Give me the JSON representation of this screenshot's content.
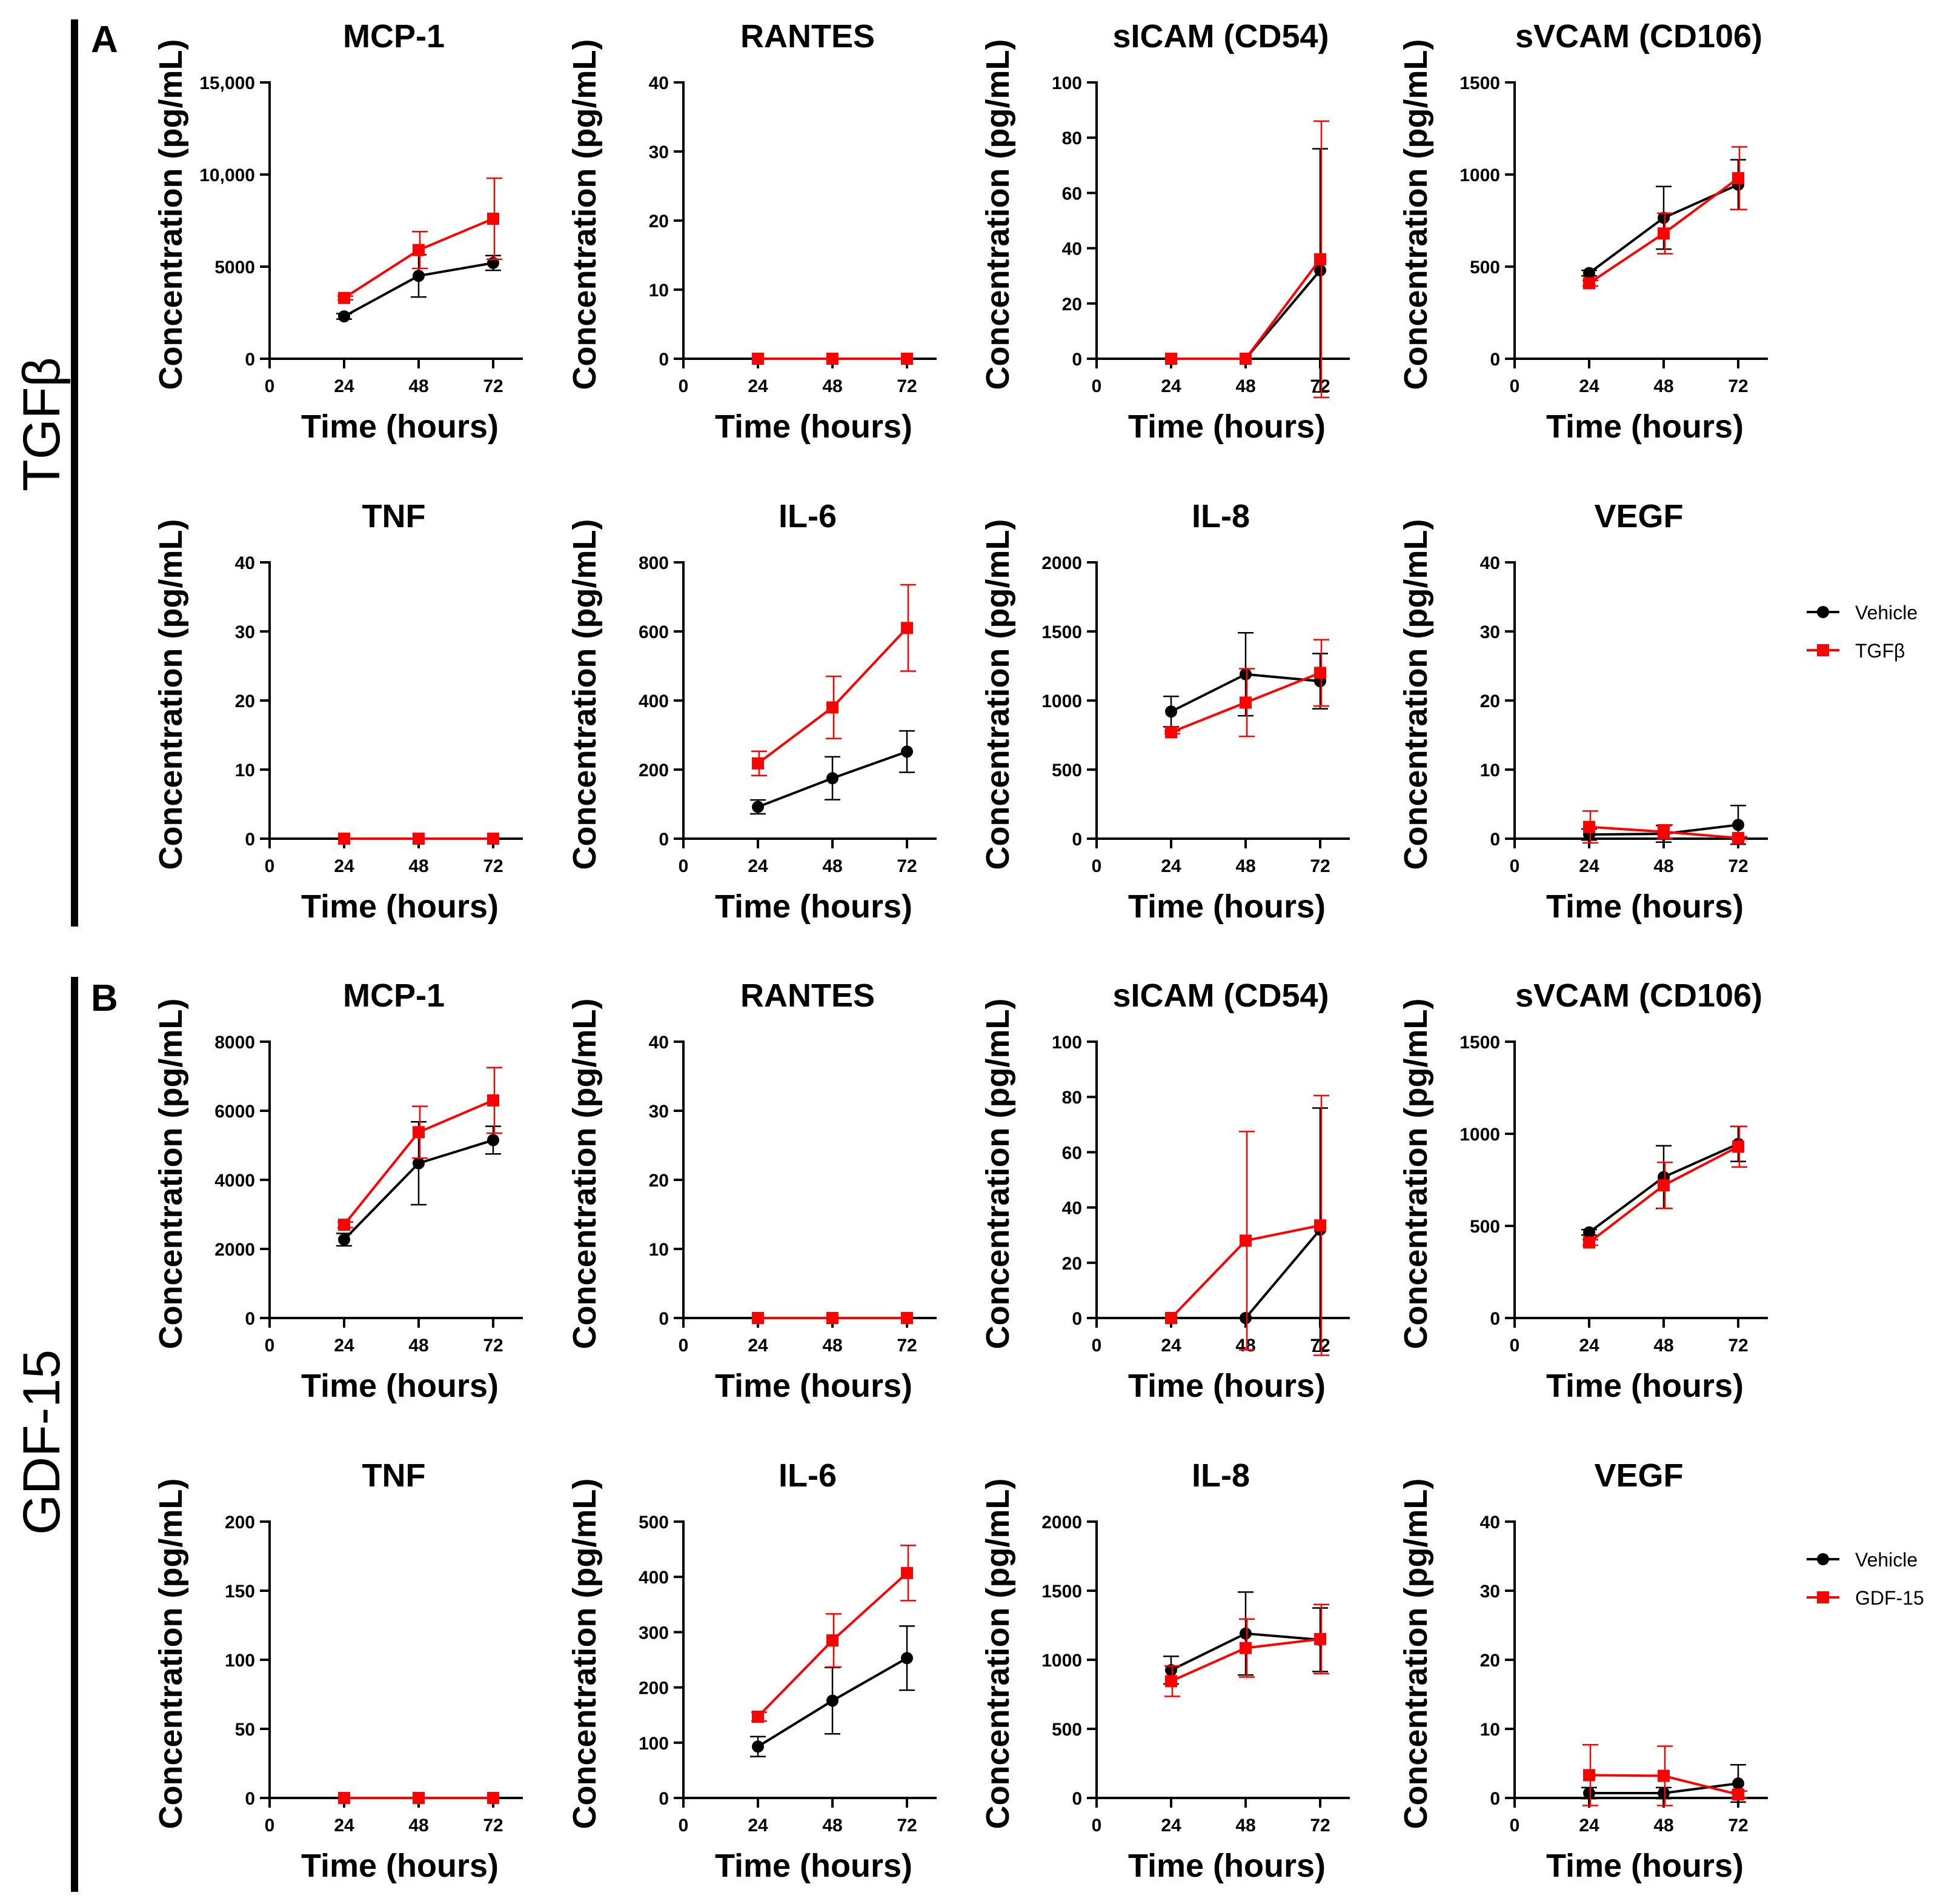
{
  "colors": {
    "vehicle": "#000000",
    "treatment": "#ff0000",
    "axis": "#000000"
  },
  "panels": [
    {
      "letter": "A",
      "group": "TGFβ",
      "legend": {
        "vehicle": "Vehicle",
        "treatment": "TGFβ"
      },
      "chart_data": [
        {
          "type": "line",
          "title": "MCP-1",
          "xlabel": "Time (hours)",
          "ylabel": "Concentration (pg/mL)",
          "xticks": [
            "0",
            "24",
            "48",
            "72"
          ],
          "ylim": [
            0,
            15000
          ],
          "yticks": [
            "0",
            "5000",
            "10,000",
            "15,000"
          ],
          "x": [
            24,
            48,
            72
          ],
          "series": [
            {
              "name": "Vehicle",
              "values": [
                2300,
                4500,
                5200
              ],
              "errors": [
                150,
                1150,
                400
              ]
            },
            {
              "name": "TGFβ",
              "values": [
                3300,
                5900,
                7600
              ],
              "errors": [
                100,
                1000,
                2200
              ]
            }
          ]
        },
        {
          "type": "line",
          "title": "RANTES",
          "xlabel": "Time (hours)",
          "ylabel": "Concentration (pg/mL)",
          "xticks": [
            "0",
            "24",
            "48",
            "72"
          ],
          "ylim": [
            0,
            40
          ],
          "yticks": [
            "0",
            "10",
            "20",
            "30",
            "40"
          ],
          "x": [
            24,
            48,
            72
          ],
          "series": [
            {
              "name": "Vehicle",
              "values": [
                0,
                0,
                0
              ],
              "errors": [
                0,
                0,
                0
              ]
            },
            {
              "name": "TGFβ",
              "values": [
                0,
                0,
                0
              ],
              "errors": [
                0,
                0,
                0
              ]
            }
          ]
        },
        {
          "type": "line",
          "title": "sICAM (CD54)",
          "xlabel": "Time (hours)",
          "ylabel": "Concentration (pg/mL)",
          "xticks": [
            "0",
            "24",
            "48",
            "72"
          ],
          "ylim": [
            0,
            100
          ],
          "yticks": [
            "0",
            "20",
            "40",
            "60",
            "80",
            "100"
          ],
          "x": [
            24,
            48,
            72
          ],
          "series": [
            {
              "name": "Vehicle",
              "values": [
                0,
                0,
                32
              ],
              "errors": [
                0,
                0,
                44
              ]
            },
            {
              "name": "TGFβ",
              "values": [
                0,
                0,
                36
              ],
              "errors": [
                0,
                0,
                50
              ]
            }
          ]
        },
        {
          "type": "line",
          "title": "sVCAM (CD106)",
          "xlabel": "Time (hours)",
          "ylabel": "Concentration (pg/mL)",
          "xticks": [
            "0",
            "24",
            "48",
            "72"
          ],
          "ylim": [
            0,
            1500
          ],
          "yticks": [
            "0",
            "500",
            "1000",
            "1500"
          ],
          "x": [
            24,
            48,
            72
          ],
          "series": [
            {
              "name": "Vehicle",
              "values": [
                465,
                765,
                945
              ],
              "errors": [
                15,
                170,
                135
              ]
            },
            {
              "name": "TGFβ",
              "values": [
                410,
                680,
                980
              ],
              "errors": [
                15,
                110,
                170
              ]
            }
          ]
        },
        {
          "type": "line",
          "title": "TNF",
          "xlabel": "Time (hours)",
          "ylabel": "Concentration (pg/mL)",
          "xticks": [
            "0",
            "24",
            "48",
            "72"
          ],
          "ylim": [
            0,
            40
          ],
          "yticks": [
            "0",
            "10",
            "20",
            "30",
            "40"
          ],
          "x": [
            24,
            48,
            72
          ],
          "series": [
            {
              "name": "Vehicle",
              "values": [
                0,
                0,
                0
              ],
              "errors": [
                0,
                0,
                0
              ]
            },
            {
              "name": "TGFβ",
              "values": [
                0,
                0,
                0
              ],
              "errors": [
                0,
                0,
                0
              ]
            }
          ]
        },
        {
          "type": "line",
          "title": "IL-6",
          "xlabel": "Time (hours)",
          "ylabel": "Concentration (pg/mL)",
          "xticks": [
            "0",
            "24",
            "48",
            "72"
          ],
          "ylim": [
            0,
            800
          ],
          "yticks": [
            "0",
            "200",
            "400",
            "600",
            "800"
          ],
          "x": [
            24,
            48,
            72
          ],
          "series": [
            {
              "name": "Vehicle",
              "values": [
                92,
                175,
                252
              ],
              "errors": [
                20,
                62,
                60
              ]
            },
            {
              "name": "TGFβ",
              "values": [
                218,
                380,
                610
              ],
              "errors": [
                35,
                90,
                125
              ]
            }
          ]
        },
        {
          "type": "line",
          "title": "IL-8",
          "xlabel": "Time (hours)",
          "ylabel": "Concentration (pg/mL)",
          "xticks": [
            "0",
            "24",
            "48",
            "72"
          ],
          "ylim": [
            0,
            2000
          ],
          "yticks": [
            "0",
            "500",
            "1000",
            "1500",
            "2000"
          ],
          "x": [
            24,
            48,
            72
          ],
          "series": [
            {
              "name": "Vehicle",
              "values": [
                920,
                1190,
                1140
              ],
              "errors": [
                110,
                300,
                200
              ]
            },
            {
              "name": "TGFβ",
              "values": [
                770,
                985,
                1200
              ],
              "errors": [
                10,
                245,
                240
              ]
            }
          ]
        },
        {
          "type": "line",
          "title": "VEGF",
          "xlabel": "Time (hours)",
          "ylabel": "Concentration (pg/mL)",
          "xticks": [
            "0",
            "24",
            "48",
            "72"
          ],
          "ylim": [
            0,
            40
          ],
          "yticks": [
            "0",
            "10",
            "20",
            "30",
            "40"
          ],
          "x": [
            24,
            48,
            72
          ],
          "series": [
            {
              "name": "Vehicle",
              "values": [
                0.6,
                0.7,
                2.0
              ],
              "errors": [
                0.8,
                1.2,
                2.8
              ]
            },
            {
              "name": "TGFβ",
              "values": [
                1.7,
                1.0,
                0.1
              ],
              "errors": [
                2.3,
                1.0,
                0.2
              ]
            }
          ]
        }
      ]
    },
    {
      "letter": "B",
      "group": "GDF-15",
      "legend": {
        "vehicle": "Vehicle",
        "treatment": "GDF-15"
      },
      "chart_data": [
        {
          "type": "line",
          "title": "MCP-1",
          "xlabel": "Time (hours)",
          "ylabel": "Concentration (pg/mL)",
          "xticks": [
            "0",
            "24",
            "48",
            "72"
          ],
          "ylim": [
            0,
            8000
          ],
          "yticks": [
            "0",
            "2000",
            "4000",
            "6000",
            "8000"
          ],
          "x": [
            24,
            48,
            72
          ],
          "series": [
            {
              "name": "Vehicle",
              "values": [
                2270,
                4480,
                5150
              ],
              "errors": [
                180,
                1200,
                400
              ]
            },
            {
              "name": "GDF-15",
              "values": [
                2700,
                5380,
                6300
              ],
              "errors": [
                80,
                750,
                950
              ]
            }
          ]
        },
        {
          "type": "line",
          "title": "RANTES",
          "xlabel": "Time (hours)",
          "ylabel": "Concentration (pg/mL)",
          "xticks": [
            "0",
            "24",
            "48",
            "72"
          ],
          "ylim": [
            0,
            40
          ],
          "yticks": [
            "0",
            "10",
            "20",
            "30",
            "40"
          ],
          "x": [
            24,
            48,
            72
          ],
          "series": [
            {
              "name": "Vehicle",
              "values": [
                0,
                0,
                0
              ],
              "errors": [
                0,
                0,
                0
              ]
            },
            {
              "name": "GDF-15",
              "values": [
                0,
                0,
                0
              ],
              "errors": [
                0,
                0,
                0
              ]
            }
          ]
        },
        {
          "type": "line",
          "title": "sICAM (CD54)",
          "xlabel": "Time (hours)",
          "ylabel": "Concentration (pg/mL)",
          "xticks": [
            "0",
            "24",
            "48",
            "72"
          ],
          "ylim": [
            0,
            100
          ],
          "yticks": [
            "0",
            "20",
            "40",
            "60",
            "80",
            "100"
          ],
          "x": [
            24,
            48,
            72
          ],
          "series": [
            {
              "name": "Vehicle",
              "values": [
                0,
                0,
                32
              ],
              "errors": [
                0,
                0,
                44
              ]
            },
            {
              "name": "GDF-15",
              "values": [
                0,
                28,
                33.5
              ],
              "errors": [
                0,
                39.5,
                47
              ]
            }
          ]
        },
        {
          "type": "line",
          "title": "sVCAM (CD106)",
          "xlabel": "Time (hours)",
          "ylabel": "Concentration (pg/mL)",
          "xticks": [
            "0",
            "24",
            "48",
            "72"
          ],
          "ylim": [
            0,
            1500
          ],
          "yticks": [
            "0",
            "500",
            "1000",
            "1500"
          ],
          "x": [
            24,
            48,
            72
          ],
          "series": [
            {
              "name": "Vehicle",
              "values": [
                465,
                765,
                945
              ],
              "errors": [
                15,
                170,
                95
              ]
            },
            {
              "name": "GDF-15",
              "values": [
                410,
                720,
                930
              ],
              "errors": [
                15,
                125,
                110
              ]
            }
          ]
        },
        {
          "type": "line",
          "title": "TNF",
          "xlabel": "Time (hours)",
          "ylabel": "Concentration (pg/mL)",
          "xticks": [
            "0",
            "24",
            "48",
            "72"
          ],
          "ylim": [
            0,
            200
          ],
          "yticks": [
            "0",
            "50",
            "100",
            "150",
            "200"
          ],
          "x": [
            24,
            48,
            72
          ],
          "series": [
            {
              "name": "Vehicle",
              "values": [
                0,
                0,
                0
              ],
              "errors": [
                0,
                0,
                0
              ]
            },
            {
              "name": "GDF-15",
              "values": [
                0,
                0,
                0
              ],
              "errors": [
                0,
                0,
                0
              ]
            }
          ]
        },
        {
          "type": "line",
          "title": "IL-6",
          "xlabel": "Time (hours)",
          "ylabel": "Concentration (pg/mL)",
          "xticks": [
            "0",
            "24",
            "48",
            "72"
          ],
          "ylim": [
            0,
            500
          ],
          "yticks": [
            "0",
            "100",
            "200",
            "300",
            "400",
            "500"
          ],
          "x": [
            24,
            48,
            72
          ],
          "series": [
            {
              "name": "Vehicle",
              "values": [
                93,
                176,
                253
              ],
              "errors": [
                18,
                60,
                58
              ]
            },
            {
              "name": "GDF-15",
              "values": [
                147,
                285,
                407
              ],
              "errors": [
                8,
                48,
                50
              ]
            }
          ]
        },
        {
          "type": "line",
          "title": "IL-8",
          "xlabel": "Time (hours)",
          "ylabel": "Concentration (pg/mL)",
          "xticks": [
            "0",
            "24",
            "48",
            "72"
          ],
          "ylim": [
            0,
            2000
          ],
          "yticks": [
            "0",
            "500",
            "1000",
            "1500",
            "2000"
          ],
          "x": [
            24,
            48,
            72
          ],
          "series": [
            {
              "name": "Vehicle",
              "values": [
                925,
                1190,
                1145
              ],
              "errors": [
                100,
                300,
                230
              ]
            },
            {
              "name": "GDF-15",
              "values": [
                845,
                1085,
                1150
              ],
              "errors": [
                110,
                210,
                250
              ]
            }
          ]
        },
        {
          "type": "line",
          "title": "VEGF",
          "xlabel": "Time (hours)",
          "ylabel": "Concentration (pg/mL)",
          "xticks": [
            "0",
            "24",
            "48",
            "72"
          ],
          "ylim": [
            0,
            40
          ],
          "yticks": [
            "0",
            "10",
            "20",
            "30",
            "40"
          ],
          "x": [
            24,
            48,
            72
          ],
          "series": [
            {
              "name": "Vehicle",
              "values": [
                0.7,
                0.7,
                2.1
              ],
              "errors": [
                0.8,
                0.8,
                2.7
              ]
            },
            {
              "name": "GDF-15",
              "values": [
                3.3,
                3.2,
                0.5
              ],
              "errors": [
                4.4,
                4.3,
                0.5
              ]
            }
          ]
        }
      ]
    }
  ]
}
